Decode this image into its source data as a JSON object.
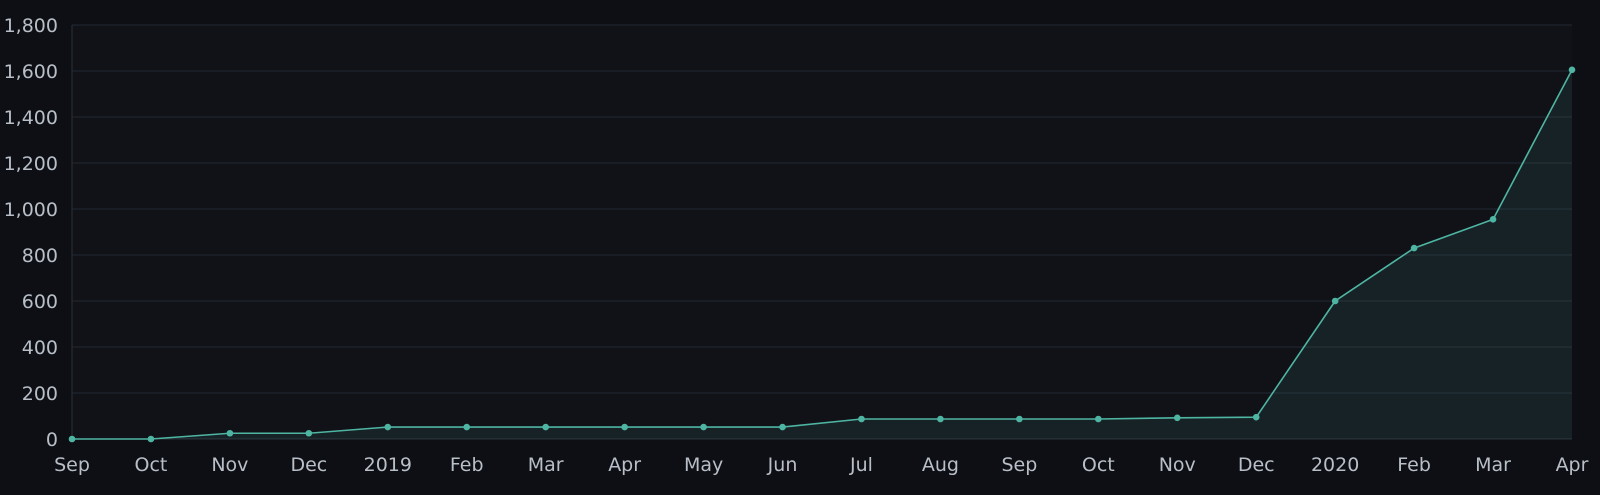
{
  "chart_data": {
    "type": "area",
    "categories": [
      "Sep",
      "Oct",
      "Nov",
      "Dec",
      "2019",
      "Feb",
      "Mar",
      "Apr",
      "May",
      "Jun",
      "Jul",
      "Aug",
      "Sep",
      "Oct",
      "Nov",
      "Dec",
      "2020",
      "Feb",
      "Mar",
      "Apr"
    ],
    "series": [
      {
        "values": [
          0,
          0,
          25,
          25,
          52,
          52,
          52,
          52,
          52,
          52,
          87,
          87,
          87,
          87,
          92,
          95,
          600,
          830,
          955,
          1605
        ]
      }
    ],
    "title": "",
    "xlabel": "",
    "ylabel": "",
    "ylim": [
      0,
      1800
    ],
    "yticks": [
      0,
      200,
      400,
      600,
      800,
      1000,
      1200,
      1400,
      1600,
      1800
    ],
    "ytick_labels": [
      "0",
      "200",
      "400",
      "600",
      "800",
      "1,000",
      "1,200",
      "1,400",
      "1,600",
      "1,800"
    ],
    "grid": true,
    "legend": "none",
    "colors": {
      "background": "#0d0f14",
      "plot_background": "#101217",
      "line": "#4fb5a3",
      "area_fill": "#4fb5a3",
      "grid": "#222833",
      "axis": "#2a303a",
      "tick_label": "#b9bfc8"
    }
  }
}
